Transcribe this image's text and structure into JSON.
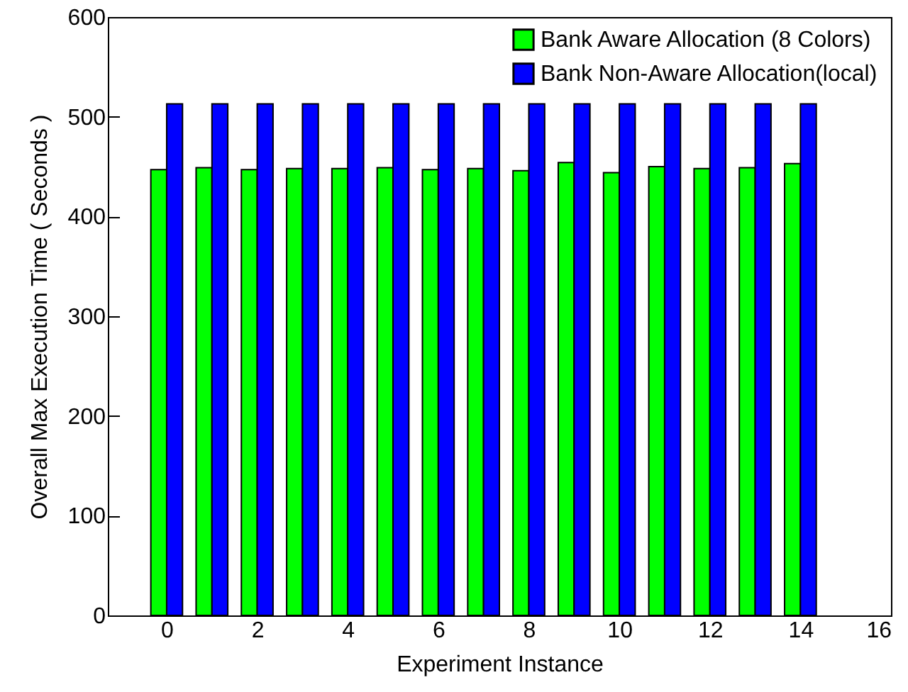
{
  "chart_data": {
    "type": "bar",
    "xlabel": "Experiment Instance",
    "ylabel": "Overall Max Execution Time ( Seconds )",
    "x": [
      0,
      1,
      2,
      3,
      4,
      5,
      6,
      7,
      8,
      9,
      10,
      11,
      12,
      13,
      14
    ],
    "series": [
      {
        "name": "Bank Aware Allocation (8 Colors)",
        "color": "#00ff00",
        "values": [
          447,
          449,
          447,
          448,
          448,
          449,
          447,
          448,
          446,
          454,
          444,
          450,
          448,
          449,
          453
        ]
      },
      {
        "name": "Bank Non-Aware Allocation(local)",
        "color": "#0000ff",
        "values": [
          513,
          513,
          513,
          513,
          513,
          513,
          513,
          513,
          513,
          513,
          513,
          513,
          513,
          513,
          513
        ]
      }
    ],
    "xlim": [
      -1.3,
      16
    ],
    "xticks": [
      0,
      2,
      4,
      6,
      8,
      10,
      12,
      14,
      16
    ],
    "ylim": [
      0,
      600
    ],
    "yticks": [
      0,
      100,
      200,
      300,
      400,
      500,
      600
    ],
    "legend": "top right",
    "grid": false
  }
}
